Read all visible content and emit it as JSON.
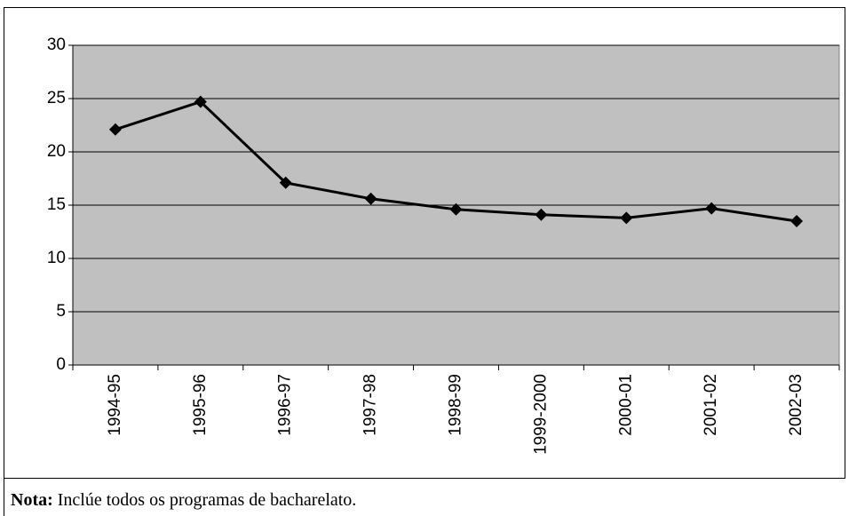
{
  "chart_data": {
    "type": "line",
    "categories": [
      "1994-95",
      "1995-96",
      "1996-97",
      "1997-98",
      "1998-99",
      "1999-2000",
      "2000-01",
      "2001-02",
      "2002-03"
    ],
    "values": [
      22.1,
      24.7,
      17.1,
      15.6,
      14.6,
      14.1,
      13.8,
      14.7,
      13.5
    ],
    "color": "#000000",
    "ylim": [
      0,
      30
    ],
    "yticks": [
      0,
      5,
      10,
      15,
      20,
      25,
      30
    ],
    "grid": true,
    "note_label": "Nota:",
    "note": "Inclúe todos os programas de bacharelato."
  }
}
